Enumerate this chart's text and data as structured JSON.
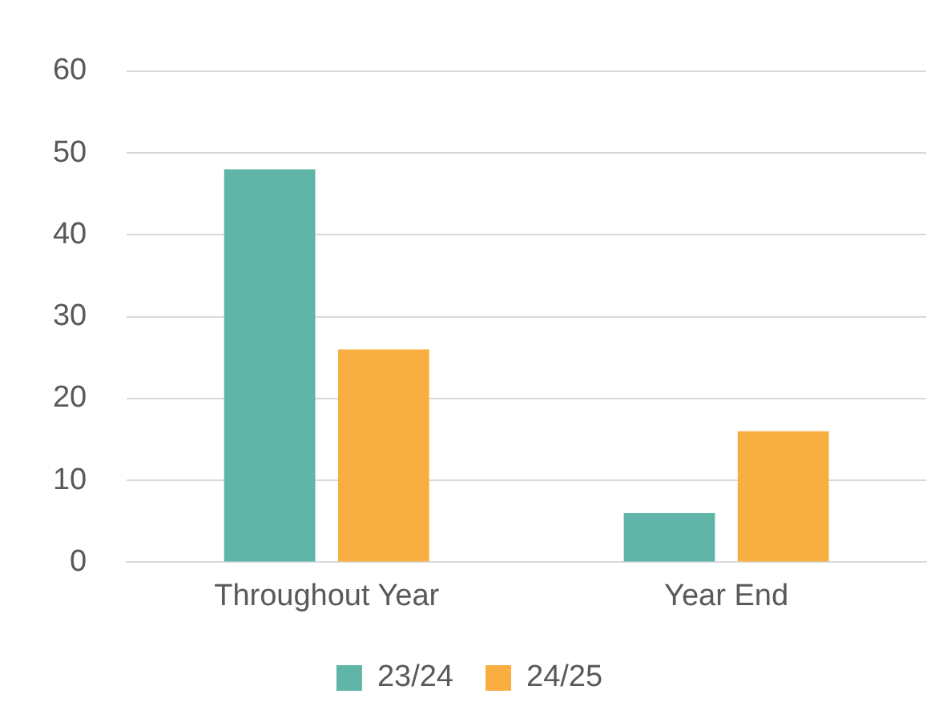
{
  "chart_data": {
    "type": "bar",
    "categories": [
      "Throughout Year",
      "Year End"
    ],
    "series": [
      {
        "name": "23/24",
        "color": "#5fb5a7",
        "values": [
          48,
          6
        ]
      },
      {
        "name": "24/25",
        "color": "#f9ae42",
        "values": [
          26,
          16
        ]
      }
    ],
    "ylim": [
      0,
      60
    ],
    "yticks": [
      0,
      10,
      20,
      30,
      40,
      50,
      60
    ],
    "grid": "y",
    "legend": "bottom"
  }
}
